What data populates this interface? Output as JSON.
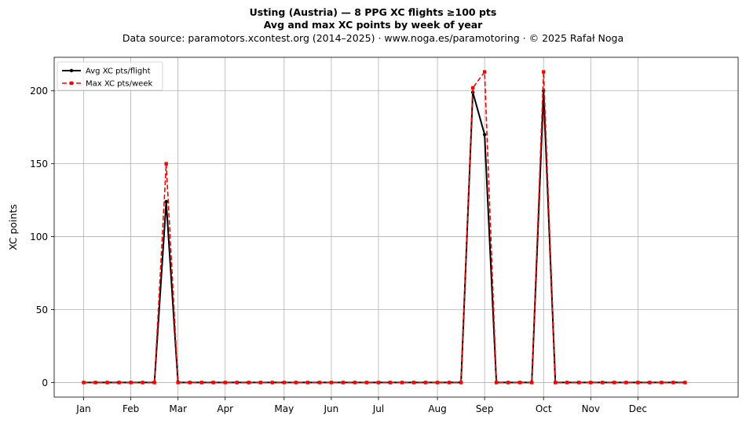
{
  "header": {
    "title_line1": "Usting (Austria)  —  8 PPG XC flights ≥100 pts",
    "title_line2": "Avg and max XC points by week of year",
    "subtitle": "Data source: paramotors.xcontest.org (2014–2025)  ·  www.noga.es/paramotoring  ·  © 2025 Rafał Noga"
  },
  "chart_data": {
    "type": "line",
    "title": "Usting (Austria)  —  8 PPG XC flights ≥100 pts / Avg and max XC points by week of year",
    "xlabel": "",
    "ylabel": "XC points",
    "xlim": [
      -2.5,
      55.5
    ],
    "ylim": [
      -10,
      223
    ],
    "grid": true,
    "legend_position": "top-left",
    "x_ticks": [
      {
        "label": "Jan",
        "x": 0
      },
      {
        "label": "Feb",
        "x": 4
      },
      {
        "label": "Mar",
        "x": 8
      },
      {
        "label": "Apr",
        "x": 12
      },
      {
        "label": "May",
        "x": 17
      },
      {
        "label": "Jun",
        "x": 21
      },
      {
        "label": "Jul",
        "x": 25
      },
      {
        "label": "Aug",
        "x": 30
      },
      {
        "label": "Sep",
        "x": 34
      },
      {
        "label": "Oct",
        "x": 39
      },
      {
        "label": "Nov",
        "x": 43
      },
      {
        "label": "Dec",
        "x": 47
      }
    ],
    "y_ticks": [
      0,
      50,
      100,
      150,
      200
    ],
    "weeks": [
      0,
      1,
      2,
      3,
      4,
      5,
      6,
      7,
      8,
      9,
      10,
      11,
      12,
      13,
      14,
      15,
      16,
      17,
      18,
      19,
      20,
      21,
      22,
      23,
      24,
      25,
      26,
      27,
      28,
      29,
      30,
      31,
      32,
      33,
      34,
      35,
      36,
      37,
      38,
      39,
      40,
      41,
      42,
      43,
      44,
      45,
      46,
      47,
      48,
      49,
      50,
      51
    ],
    "series": [
      {
        "name": "Avg XC pts/flight",
        "color": "#000000",
        "values": [
          0,
          0,
          0,
          0,
          0,
          0,
          0,
          124,
          0,
          0,
          0,
          0,
          0,
          0,
          0,
          0,
          0,
          0,
          0,
          0,
          0,
          0,
          0,
          0,
          0,
          0,
          0,
          0,
          0,
          0,
          0,
          0,
          0,
          199,
          170,
          0,
          0,
          0,
          0,
          200,
          0,
          0,
          0,
          0,
          0,
          0,
          0,
          0,
          0,
          0,
          0,
          0
        ]
      },
      {
        "name": "Max XC pts/week",
        "color": "#ff0000",
        "values": [
          0,
          0,
          0,
          0,
          0,
          0,
          0,
          150,
          0,
          0,
          0,
          0,
          0,
          0,
          0,
          0,
          0,
          0,
          0,
          0,
          0,
          0,
          0,
          0,
          0,
          0,
          0,
          0,
          0,
          0,
          0,
          0,
          0,
          202,
          213,
          0,
          0,
          0,
          0,
          213,
          0,
          0,
          0,
          0,
          0,
          0,
          0,
          0,
          0,
          0,
          0,
          0
        ]
      }
    ]
  }
}
